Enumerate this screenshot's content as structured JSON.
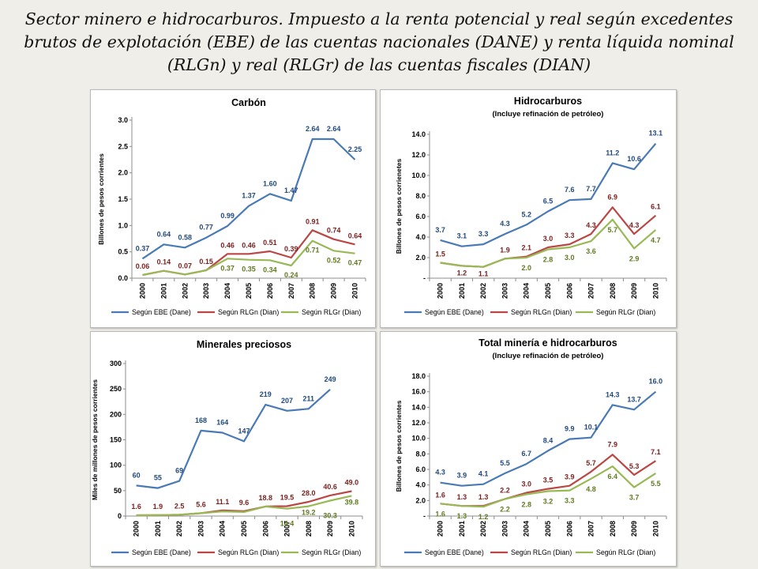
{
  "slide_title": "Sector minero e hidrocarburos. Impuesto a la renta potencial y real según excedentes brutos de explotación (EBE) de las cuentas nacionales (DANE) y renta líquida nominal (RLGn) y real (RLGr) de las cuentas fiscales (DIAN)",
  "colors": {
    "ebe": "#4a7ab5",
    "rlgn": "#bb4745",
    "rlgr": "#98b954",
    "label_ebe": "#1f497d",
    "label_rlgn": "#7b1f1d",
    "label_rlgr": "#5f7a1f"
  },
  "chart_data": [
    {
      "type": "line",
      "title": "Carbón",
      "subtitle": "",
      "ylabel": "Billones de pesos corrientes",
      "ylim": [
        0,
        3.0
      ],
      "yticks": [
        "0.0",
        "0.5",
        "1.0",
        "1.5",
        "2.0",
        "2.5",
        "3.0"
      ],
      "grid": false,
      "legend": "bottom",
      "categories": [
        "2000",
        "2001",
        "2002",
        "2003",
        "2004",
        "2005",
        "2006",
        "2007",
        "2008",
        "2009",
        "2010"
      ],
      "series": [
        {
          "name": "Según EBE (Dane)",
          "values": [
            0.37,
            0.64,
            0.58,
            0.77,
            0.99,
            1.37,
            1.6,
            1.47,
            2.64,
            2.64,
            2.25
          ],
          "labels": [
            "0.37",
            "0.64",
            "0.58",
            "0.77",
            "0.99",
            "1.37",
            "1.60",
            "1.47",
            "2.64",
            "2.64",
            "2.25"
          ]
        },
        {
          "name": "Según RLGn  (Dian)",
          "values": [
            0.06,
            0.14,
            0.07,
            0.15,
            0.46,
            0.46,
            0.51,
            0.39,
            0.91,
            0.74,
            0.64
          ],
          "labels": [
            "0.06",
            "0.14",
            "0.07",
            "0.15",
            "0.46",
            "0.46",
            "0.51",
            "0.39",
            "0.91",
            "0.74",
            "0.64"
          ]
        },
        {
          "name": "Según RLGr (Dian)",
          "values": [
            0.06,
            0.14,
            0.07,
            0.15,
            0.37,
            0.35,
            0.34,
            0.24,
            0.71,
            0.52,
            0.47
          ],
          "labels": [
            "",
            "",
            "",
            "",
            "0.37",
            "0.35",
            "0.34",
            "0.24",
            "0.71",
            "0.52",
            "0.47"
          ]
        }
      ]
    },
    {
      "type": "line",
      "title": "Hidrocarburos",
      "subtitle": "(Incluye refinación de petróleo)",
      "ylabel": "Billones de pesos corrienetes",
      "ylim": [
        0,
        14.0
      ],
      "yticks": [
        "-",
        "2.0",
        "4.0",
        "6.0",
        "8.0",
        "10.0",
        "12.0",
        "14.0"
      ],
      "grid": false,
      "legend": "bottom",
      "categories": [
        "2000",
        "2001",
        "2002",
        "2003",
        "2004",
        "2005",
        "2006",
        "2007",
        "2008",
        "2009",
        "2010"
      ],
      "series": [
        {
          "name": "Según EBE (Dane)",
          "values": [
            3.7,
            3.1,
            3.3,
            4.3,
            5.2,
            6.5,
            7.6,
            7.7,
            11.2,
            10.6,
            13.1
          ],
          "labels": [
            "3.7",
            "3.1",
            "3.3",
            "4.3",
            "5.2",
            "6.5",
            "7.6",
            "7.7",
            "11.2",
            "10.6",
            "13.1"
          ]
        },
        {
          "name": "Según RLGn  (Dian)",
          "values": [
            1.5,
            1.2,
            1.1,
            1.9,
            2.1,
            3.0,
            3.3,
            4.3,
            6.9,
            4.3,
            6.1
          ],
          "labels": [
            "1.5",
            "1.2",
            "1.1",
            "1.9",
            "2.1",
            "3.0",
            "3.3",
            "4.3",
            "6.9",
            "4.3",
            "6.1"
          ]
        },
        {
          "name": "Según RLGr (Dian)",
          "values": [
            1.5,
            1.2,
            1.1,
            1.9,
            2.0,
            2.8,
            3.0,
            3.6,
            5.7,
            2.9,
            4.7
          ],
          "labels": [
            "",
            "",
            "",
            "",
            "2.0",
            "2.8",
            "3.0",
            "3.6",
            "5.7",
            "2.9",
            "4.7"
          ]
        }
      ]
    },
    {
      "type": "line",
      "title": "Minerales preciosos",
      "subtitle": "",
      "ylabel": "Miles de millones de pesos corrientes",
      "ylim": [
        0,
        300
      ],
      "yticks": [
        "0",
        "50",
        "100",
        "150",
        "200",
        "250",
        "300"
      ],
      "grid": false,
      "legend": "bottom",
      "categories": [
        "2000",
        "2001",
        "2002",
        "2003",
        "2004",
        "2005",
        "2006",
        "2007",
        "2008",
        "2009",
        "2010"
      ],
      "series": [
        {
          "name": "Según EBE (Dane)",
          "values": [
            60,
            55,
            69,
            168,
            164,
            147,
            219,
            207,
            211,
            249,
            null
          ],
          "labels": [
            "60",
            "55",
            "69",
            "168",
            "164",
            "147",
            "219",
            "207",
            "211",
            "249",
            ""
          ]
        },
        {
          "name": "Según RLGn  (Dian)",
          "values": [
            1.6,
            1.9,
            2.5,
            5.6,
            11.1,
            9.6,
            18.8,
            19.5,
            28.0,
            40.6,
            49.0
          ],
          "labels": [
            "1.6",
            "1.9",
            "2.5",
            "5.6",
            "11.1",
            "9.6",
            "18.8",
            "19.5",
            "28.0",
            "40.6",
            "49.0"
          ]
        },
        {
          "name": "Según RLGr (Dian)",
          "values": [
            1.6,
            1.9,
            2.5,
            5.6,
            9.0,
            8.0,
            18.8,
            14.4,
            19.2,
            30.3,
            39.8
          ],
          "labels": [
            "",
            "",
            "",
            "",
            "",
            "",
            "",
            "14.4",
            "19.2",
            "30.3",
            "39.8"
          ]
        }
      ]
    },
    {
      "type": "line",
      "title": "Total minería e hidrocarburos",
      "subtitle": "(Incluye refinación de petróleo)",
      "ylabel": "Billones de pesos corrientes",
      "ylim": [
        0,
        18.0
      ],
      "yticks": [
        "-",
        "2.0",
        "4.0",
        "6.0",
        "8.0",
        "10.0",
        "12.0",
        "14.0",
        "16.0",
        "18.0"
      ],
      "grid": false,
      "legend": "bottom",
      "categories": [
        "2000",
        "2001",
        "2002",
        "2003",
        "2004",
        "2005",
        "2006",
        "2007",
        "2008",
        "2009",
        "2010"
      ],
      "series": [
        {
          "name": "Según EBE (Dane)",
          "values": [
            4.3,
            3.9,
            4.1,
            5.5,
            6.7,
            8.4,
            9.9,
            10.1,
            14.3,
            13.7,
            16.0
          ],
          "labels": [
            "4.3",
            "3.9",
            "4.1",
            "5.5",
            "6.7",
            "8.4",
            "9.9",
            "10.1",
            "14.3",
            "13.7",
            "16.0"
          ]
        },
        {
          "name": "Según RLGn  (Dian)",
          "values": [
            1.6,
            1.3,
            1.3,
            2.2,
            3.0,
            3.5,
            3.9,
            5.7,
            7.9,
            5.3,
            7.1
          ],
          "labels": [
            "1.6",
            "1.3",
            "1.3",
            "2.2",
            "3.0",
            "3.5",
            "3.9",
            "5.7",
            "7.9",
            "5.3",
            "7.1"
          ]
        },
        {
          "name": "Según RLGr (Dian)",
          "values": [
            1.6,
            1.3,
            1.2,
            2.2,
            2.8,
            3.2,
            3.3,
            4.8,
            6.4,
            3.7,
            5.5
          ],
          "labels": [
            "1.6",
            "1.3",
            "1.2",
            "2.2",
            "2.8",
            "3.2",
            "3.3",
            "4.8",
            "6.4",
            "3.7",
            "5.5"
          ]
        }
      ]
    }
  ]
}
